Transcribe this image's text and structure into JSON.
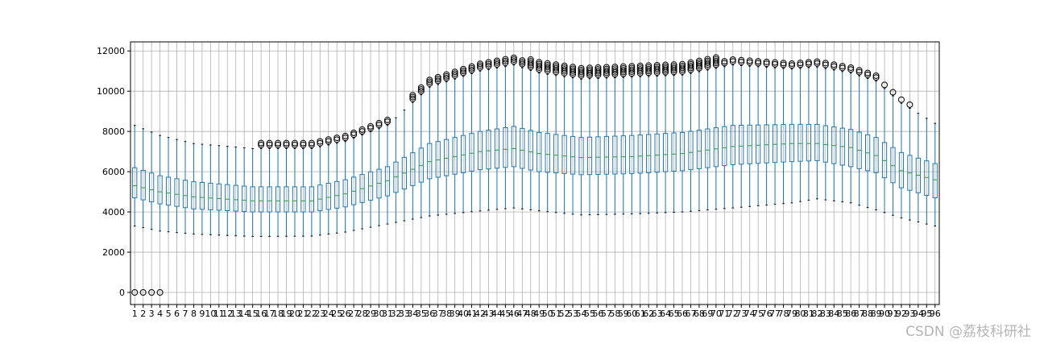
{
  "chart_data": {
    "type": "boxplot",
    "categories": [
      1,
      2,
      3,
      4,
      5,
      6,
      7,
      8,
      9,
      10,
      11,
      12,
      13,
      14,
      15,
      16,
      17,
      18,
      19,
      20,
      21,
      22,
      23,
      24,
      25,
      26,
      27,
      28,
      29,
      30,
      31,
      32,
      33,
      34,
      35,
      36,
      37,
      38,
      39,
      40,
      41,
      42,
      43,
      44,
      45,
      46,
      47,
      48,
      49,
      50,
      51,
      52,
      53,
      54,
      55,
      56,
      57,
      58,
      59,
      60,
      61,
      62,
      63,
      64,
      65,
      66,
      67,
      68,
      69,
      70,
      71,
      72,
      73,
      74,
      75,
      76,
      77,
      78,
      79,
      80,
      81,
      82,
      83,
      84,
      85,
      86,
      87,
      88,
      89,
      90,
      91,
      92,
      93,
      94,
      95,
      96
    ],
    "yticks": [
      0,
      2000,
      4000,
      6000,
      8000,
      10000,
      12000
    ],
    "ylim": [
      -600,
      12450
    ],
    "grid": true,
    "box_color": "#1f77b4",
    "median_color": "#2ca02c",
    "whisker_color": "#1f77b4",
    "key_points": [
      {
        "x": 1,
        "q1": 4700,
        "med": 5300,
        "q3": 6200,
        "lo": 3300,
        "hi": 8300
      },
      {
        "x": 4,
        "q1": 4400,
        "med": 5000,
        "q3": 5800,
        "lo": 3050,
        "hi": 7800
      },
      {
        "x": 8,
        "q1": 4150,
        "med": 4750,
        "q3": 5500,
        "lo": 2900,
        "hi": 7400
      },
      {
        "x": 15,
        "q1": 4000,
        "med": 4550,
        "q3": 5250,
        "lo": 2780,
        "hi": 7150
      },
      {
        "x": 22,
        "q1": 4000,
        "med": 4550,
        "q3": 5250,
        "lo": 2800,
        "hi": 7150
      },
      {
        "x": 26,
        "q1": 4250,
        "med": 4900,
        "q3": 5600,
        "lo": 3000,
        "hi": 7500
      },
      {
        "x": 31,
        "q1": 4800,
        "med": 5550,
        "q3": 6250,
        "lo": 3400,
        "hi": 8300
      },
      {
        "x": 36,
        "q1": 5650,
        "med": 6500,
        "q3": 7400,
        "lo": 3800,
        "hi": 10200
      },
      {
        "x": 42,
        "q1": 6100,
        "med": 7000,
        "q3": 8000,
        "lo": 4050,
        "hi": 11000
      },
      {
        "x": 46,
        "q1": 6250,
        "med": 7150,
        "q3": 8250,
        "lo": 4200,
        "hi": 11300
      },
      {
        "x": 49,
        "q1": 6000,
        "med": 6900,
        "q3": 7950,
        "lo": 4050,
        "hi": 10900
      },
      {
        "x": 54,
        "q1": 5850,
        "med": 6700,
        "q3": 7700,
        "lo": 3850,
        "hi": 10600
      },
      {
        "x": 60,
        "q1": 5900,
        "med": 6750,
        "q3": 7800,
        "lo": 3900,
        "hi": 10700
      },
      {
        "x": 66,
        "q1": 6050,
        "med": 6900,
        "q3": 7950,
        "lo": 4000,
        "hi": 10800
      },
      {
        "x": 72,
        "q1": 6350,
        "med": 7250,
        "q3": 8300,
        "lo": 4200,
        "hi": 11300
      },
      {
        "x": 79,
        "q1": 6500,
        "med": 7400,
        "q3": 8350,
        "lo": 4450,
        "hi": 11100
      },
      {
        "x": 82,
        "q1": 6550,
        "med": 7400,
        "q3": 8350,
        "lo": 4650,
        "hi": 11200
      },
      {
        "x": 86,
        "q1": 6250,
        "med": 7200,
        "q3": 8100,
        "lo": 4450,
        "hi": 10900
      },
      {
        "x": 89,
        "q1": 5950,
        "med": 6800,
        "q3": 7700,
        "lo": 4100,
        "hi": 10500
      },
      {
        "x": 92,
        "q1": 5200,
        "med": 6050,
        "q3": 6950,
        "lo": 3700,
        "hi": 9400
      },
      {
        "x": 96,
        "q1": 4700,
        "med": 5600,
        "q3": 6400,
        "lo": 3300,
        "hi": 8400
      }
    ],
    "outliers_low": [
      {
        "x": 1,
        "y": 0
      },
      {
        "x": 2,
        "y": 0
      },
      {
        "x": 3,
        "y": 0
      },
      {
        "x": 4,
        "y": 0
      }
    ]
  },
  "watermark": "CSDN @荔枝科研社"
}
